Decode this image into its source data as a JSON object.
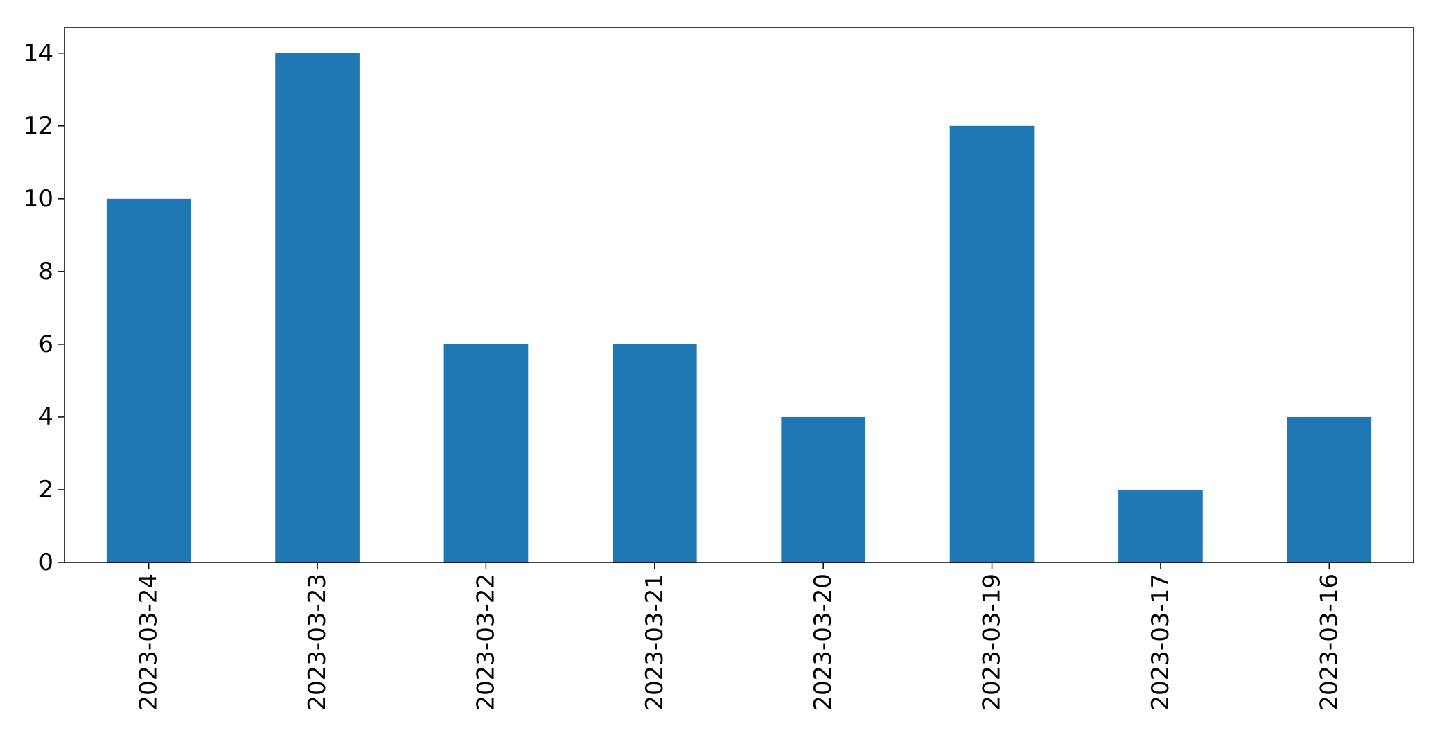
{
  "chart_data": {
    "type": "bar",
    "title": "",
    "xlabel": "",
    "ylabel": "",
    "categories": [
      "2023-03-24",
      "2023-03-23",
      "2023-03-22",
      "2023-03-21",
      "2023-03-20",
      "2023-03-19",
      "2023-03-17",
      "2023-03-16"
    ],
    "values": [
      10,
      14,
      6,
      6,
      4,
      12,
      2,
      4
    ],
    "ylim": [
      0,
      14.7
    ],
    "yticks": [
      0,
      2,
      4,
      6,
      8,
      10,
      12,
      14
    ],
    "grid": false,
    "legend": "none",
    "bar_color": "#1f77b4",
    "axis_color": "#000000"
  }
}
